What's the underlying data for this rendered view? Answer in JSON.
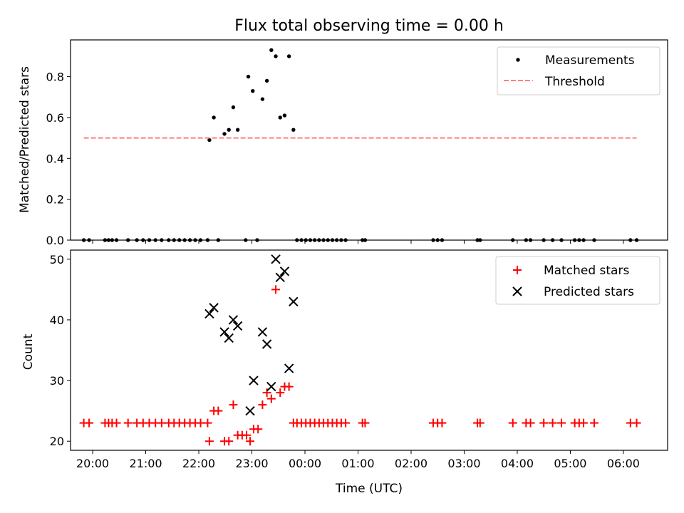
{
  "title": "Flux total observing time = 0.00 h",
  "colors": {
    "measurement": "#000000",
    "threshold": "#ff7f7f",
    "matched": "#ff0000",
    "predicted": "#000000"
  },
  "chart_data": [
    {
      "type": "scatter",
      "title": "Flux total observing time = 0.00 h",
      "xlabel": "",
      "ylabel": "Matched/Predicted stars",
      "xlim": [
        "19:35",
        "06:50"
      ],
      "ylim": [
        0,
        0.98
      ],
      "yticks": [
        0.0,
        0.2,
        0.4,
        0.6,
        0.8
      ],
      "ytick_labels": [
        "0.0",
        "0.2",
        "0.4",
        "0.6",
        "0.8"
      ],
      "legend": "top-right",
      "legend_entries": [
        "Measurements",
        "Threshold"
      ],
      "series": [
        {
          "name": "Measurements",
          "marker": "dot",
          "points": [
            [
              "19:50",
              0
            ],
            [
              "19:56",
              0
            ],
            [
              "20:14",
              0
            ],
            [
              "20:18",
              0
            ],
            [
              "20:22",
              0
            ],
            [
              "20:27",
              0
            ],
            [
              "20:40",
              0
            ],
            [
              "20:50",
              0
            ],
            [
              "20:57",
              0
            ],
            [
              "21:04",
              0
            ],
            [
              "21:11",
              0
            ],
            [
              "21:18",
              0
            ],
            [
              "21:26",
              0
            ],
            [
              "21:32",
              0
            ],
            [
              "21:38",
              0
            ],
            [
              "21:44",
              0
            ],
            [
              "21:50",
              0
            ],
            [
              "21:56",
              0
            ],
            [
              "22:02",
              0
            ],
            [
              "22:10",
              0
            ],
            [
              "22:12",
              0.49
            ],
            [
              "22:17",
              0.6
            ],
            [
              "22:22",
              0
            ],
            [
              "22:29",
              0.52
            ],
            [
              "22:34",
              0.54
            ],
            [
              "22:39",
              0.65
            ],
            [
              "22:44",
              0.54
            ],
            [
              "22:53",
              0
            ],
            [
              "22:56",
              0.8
            ],
            [
              "23:01",
              0.73
            ],
            [
              "23:06",
              0
            ],
            [
              "23:12",
              0.69
            ],
            [
              "23:17",
              0.78
            ],
            [
              "23:22",
              0.93
            ],
            [
              "23:27",
              0.9
            ],
            [
              "23:32",
              0.6
            ],
            [
              "23:37",
              0.61
            ],
            [
              "23:42",
              0.9
            ],
            [
              "23:47",
              0.54
            ],
            [
              "23:51",
              0
            ],
            [
              "23:56",
              0
            ],
            [
              "00:01",
              0
            ],
            [
              "00:06",
              0
            ],
            [
              "00:11",
              0
            ],
            [
              "00:16",
              0
            ],
            [
              "00:21",
              0
            ],
            [
              "00:26",
              0
            ],
            [
              "00:31",
              0
            ],
            [
              "00:36",
              0
            ],
            [
              "00:41",
              0
            ],
            [
              "00:46",
              0
            ],
            [
              "01:05",
              0
            ],
            [
              "01:08",
              0
            ],
            [
              "02:25",
              0
            ],
            [
              "02:30",
              0
            ],
            [
              "02:35",
              0
            ],
            [
              "03:15",
              0
            ],
            [
              "03:18",
              0
            ],
            [
              "03:55",
              0
            ],
            [
              "04:10",
              0
            ],
            [
              "04:15",
              0
            ],
            [
              "04:30",
              0
            ],
            [
              "04:40",
              0
            ],
            [
              "04:50",
              0
            ],
            [
              "05:05",
              0
            ],
            [
              "05:10",
              0
            ],
            [
              "05:15",
              0
            ],
            [
              "05:27",
              0
            ],
            [
              "06:08",
              0
            ],
            [
              "06:15",
              0
            ]
          ]
        },
        {
          "name": "Threshold",
          "style": "dashed",
          "points": [
            [
              "19:50",
              0.5
            ],
            [
              "06:15",
              0.5
            ]
          ]
        }
      ]
    },
    {
      "type": "scatter",
      "title": "",
      "xlabel": "Time (UTC)",
      "ylabel": "Count",
      "xlim": [
        "19:35",
        "06:50"
      ],
      "ylim": [
        18.5,
        51.5
      ],
      "yticks": [
        20,
        30,
        40,
        50
      ],
      "ytick_labels": [
        "20",
        "30",
        "40",
        "50"
      ],
      "xticks": [
        "20:00",
        "21:00",
        "22:00",
        "23:00",
        "00:00",
        "01:00",
        "02:00",
        "03:00",
        "04:00",
        "05:00",
        "06:00"
      ],
      "legend": "top-right",
      "legend_entries": [
        "Matched stars",
        "Predicted stars"
      ],
      "series": [
        {
          "name": "Matched stars",
          "marker": "plus",
          "points": [
            [
              "19:50",
              23
            ],
            [
              "19:56",
              23
            ],
            [
              "20:14",
              23
            ],
            [
              "20:18",
              23
            ],
            [
              "20:22",
              23
            ],
            [
              "20:27",
              23
            ],
            [
              "20:40",
              23
            ],
            [
              "20:50",
              23
            ],
            [
              "20:57",
              23
            ],
            [
              "21:04",
              23
            ],
            [
              "21:11",
              23
            ],
            [
              "21:18",
              23
            ],
            [
              "21:26",
              23
            ],
            [
              "21:32",
              23
            ],
            [
              "21:38",
              23
            ],
            [
              "21:44",
              23
            ],
            [
              "21:50",
              23
            ],
            [
              "21:56",
              23
            ],
            [
              "22:02",
              23
            ],
            [
              "22:10",
              23
            ],
            [
              "22:12",
              20
            ],
            [
              "22:17",
              25
            ],
            [
              "22:22",
              25
            ],
            [
              "22:29",
              20
            ],
            [
              "22:34",
              20
            ],
            [
              "22:39",
              26
            ],
            [
              "22:44",
              21
            ],
            [
              "22:49",
              21
            ],
            [
              "22:54",
              21
            ],
            [
              "22:58",
              20
            ],
            [
              "23:02",
              22
            ],
            [
              "23:07",
              22
            ],
            [
              "23:12",
              26
            ],
            [
              "23:17",
              28
            ],
            [
              "23:22",
              27
            ],
            [
              "23:27",
              45
            ],
            [
              "23:32",
              28
            ],
            [
              "23:37",
              29
            ],
            [
              "23:42",
              29
            ],
            [
              "23:47",
              23
            ],
            [
              "23:51",
              23
            ],
            [
              "23:56",
              23
            ],
            [
              "00:01",
              23
            ],
            [
              "00:06",
              23
            ],
            [
              "00:11",
              23
            ],
            [
              "00:16",
              23
            ],
            [
              "00:21",
              23
            ],
            [
              "00:26",
              23
            ],
            [
              "00:31",
              23
            ],
            [
              "00:36",
              23
            ],
            [
              "00:41",
              23
            ],
            [
              "00:46",
              23
            ],
            [
              "01:05",
              23
            ],
            [
              "01:08",
              23
            ],
            [
              "02:25",
              23
            ],
            [
              "02:30",
              23
            ],
            [
              "02:35",
              23
            ],
            [
              "03:15",
              23
            ],
            [
              "03:18",
              23
            ],
            [
              "03:55",
              23
            ],
            [
              "04:10",
              23
            ],
            [
              "04:15",
              23
            ],
            [
              "04:30",
              23
            ],
            [
              "04:40",
              23
            ],
            [
              "04:50",
              23
            ],
            [
              "05:05",
              23
            ],
            [
              "05:10",
              23
            ],
            [
              "05:15",
              23
            ],
            [
              "05:27",
              23
            ],
            [
              "06:08",
              23
            ],
            [
              "06:15",
              23
            ]
          ]
        },
        {
          "name": "Predicted stars",
          "marker": "x",
          "points": [
            [
              "22:12",
              41
            ],
            [
              "22:17",
              42
            ],
            [
              "22:29",
              38
            ],
            [
              "22:34",
              37
            ],
            [
              "22:39",
              40
            ],
            [
              "22:44",
              39
            ],
            [
              "22:58",
              25
            ],
            [
              "23:02",
              30
            ],
            [
              "23:12",
              38
            ],
            [
              "23:17",
              36
            ],
            [
              "23:22",
              29
            ],
            [
              "23:27",
              50
            ],
            [
              "23:32",
              47
            ],
            [
              "23:37",
              48
            ],
            [
              "23:42",
              32
            ],
            [
              "23:47",
              43
            ]
          ]
        }
      ]
    }
  ]
}
